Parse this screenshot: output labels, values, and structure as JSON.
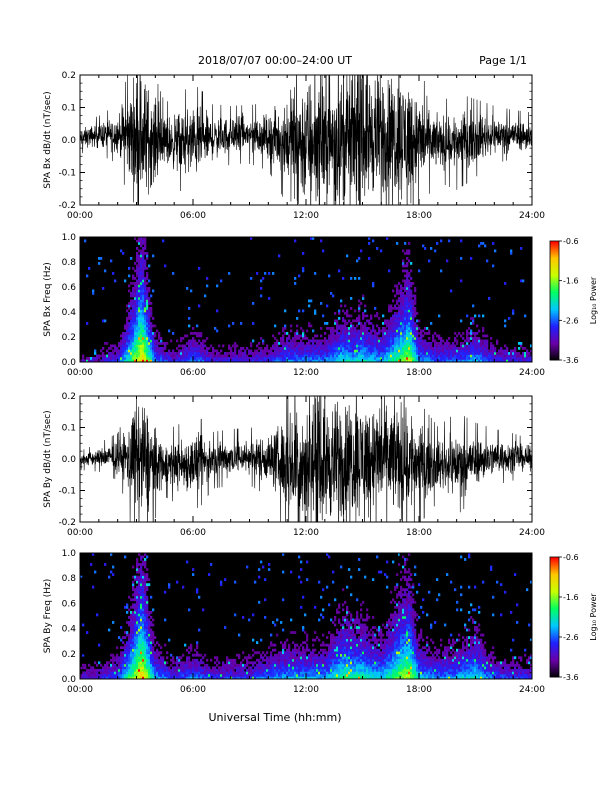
{
  "header": {
    "title": "2018/07/07  00:00–24:00 UT",
    "page": "Page 1/1"
  },
  "xaxis": {
    "ticks": [
      "00:00",
      "06:00",
      "12:00",
      "18:00",
      "24:00"
    ],
    "label": "Universal Time (hh:mm)"
  },
  "colorbar": {
    "ticks": [
      "-0.6",
      "-1.6",
      "-2.6",
      "-3.6"
    ],
    "range": [
      -3.6,
      -0.6
    ],
    "label": "Log₁₀ Power",
    "colors": [
      "#000000",
      "#6a00a8",
      "#2020ff",
      "#00c8ff",
      "#00ff60",
      "#c8ff00",
      "#ffc800",
      "#ff0000"
    ]
  },
  "chart_data": [
    {
      "type": "line",
      "ylabel": "SPA Bx dB/dt (nT/sec)",
      "ylim": [
        -0.2,
        0.2
      ],
      "yticks": [
        "0.2",
        "0.1",
        "0.0",
        "-0.1",
        "-0.2"
      ],
      "xlim": [
        0,
        24
      ],
      "envelope": {
        "hours": [
          0,
          1,
          2,
          2.5,
          3,
          3.4,
          3.8,
          4.5,
          5,
          6,
          6.5,
          7,
          8,
          9,
          10,
          10.8,
          11.5,
          12,
          13,
          14,
          15,
          16,
          17,
          17.5,
          18,
          19,
          20,
          21,
          22,
          23,
          24
        ],
        "amplitude": [
          0.03,
          0.04,
          0.06,
          0.12,
          0.21,
          0.21,
          0.15,
          0.08,
          0.09,
          0.12,
          0.1,
          0.07,
          0.06,
          0.06,
          0.07,
          0.12,
          0.21,
          0.21,
          0.21,
          0.21,
          0.21,
          0.21,
          0.21,
          0.21,
          0.14,
          0.08,
          0.1,
          0.08,
          0.06,
          0.05,
          0.05
        ]
      }
    },
    {
      "type": "heatmap",
      "ylabel": "SPA Bx Freq (Hz)",
      "ylim": [
        0.0,
        1.0
      ],
      "yticks": [
        "1.0",
        "0.8",
        "0.6",
        "0.4",
        "0.2",
        "0.0"
      ],
      "xlim": [
        0,
        24
      ],
      "activity": {
        "hours": [
          0,
          1,
          2,
          3.3,
          4,
          5,
          6,
          6.5,
          7,
          8,
          9,
          10,
          11,
          12,
          13,
          14,
          14.5,
          15,
          16,
          17,
          17.5,
          18,
          19,
          20,
          21,
          22,
          23,
          24
        ],
        "level": [
          0.2,
          0.25,
          0.35,
          1.0,
          0.45,
          0.3,
          0.45,
          0.4,
          0.3,
          0.3,
          0.3,
          0.35,
          0.45,
          0.45,
          0.45,
          0.6,
          0.55,
          0.6,
          0.5,
          0.75,
          0.85,
          0.5,
          0.4,
          0.4,
          0.5,
          0.35,
          0.3,
          0.3
        ]
      }
    },
    {
      "type": "line",
      "ylabel": "SPA By dB/dt (nT/sec)",
      "ylim": [
        -0.2,
        0.2
      ],
      "yticks": [
        "0.2",
        "0.1",
        "0.0",
        "-0.1",
        "-0.2"
      ],
      "xlim": [
        0,
        24
      ],
      "envelope": {
        "hours": [
          0,
          1,
          2,
          2.5,
          3,
          3.4,
          3.8,
          4.5,
          5,
          6,
          6.5,
          7,
          8,
          9,
          10,
          10.8,
          11.5,
          12,
          13,
          14,
          15,
          16,
          17,
          17.5,
          18,
          19,
          20,
          21,
          22,
          23,
          24
        ],
        "amplitude": [
          0.02,
          0.03,
          0.05,
          0.1,
          0.21,
          0.21,
          0.14,
          0.07,
          0.08,
          0.1,
          0.09,
          0.06,
          0.06,
          0.06,
          0.08,
          0.14,
          0.21,
          0.21,
          0.2,
          0.21,
          0.2,
          0.18,
          0.19,
          0.2,
          0.13,
          0.08,
          0.11,
          0.08,
          0.06,
          0.05,
          0.04
        ]
      }
    },
    {
      "type": "heatmap",
      "ylabel": "SPA By Freq (Hz)",
      "ylim": [
        0.0,
        1.0
      ],
      "yticks": [
        "1.0",
        "0.8",
        "0.6",
        "0.4",
        "0.2",
        "0.0"
      ],
      "xlim": [
        0,
        24
      ],
      "activity": {
        "hours": [
          0,
          1,
          2,
          3.3,
          4,
          5,
          6,
          6.5,
          7,
          8,
          9,
          10,
          11,
          12,
          13,
          14,
          14.5,
          15,
          16,
          17,
          17.5,
          18,
          19,
          20,
          21,
          22,
          23,
          24
        ],
        "level": [
          0.25,
          0.3,
          0.4,
          1.0,
          0.5,
          0.35,
          0.45,
          0.4,
          0.35,
          0.35,
          0.35,
          0.45,
          0.5,
          0.5,
          0.5,
          0.7,
          0.65,
          0.65,
          0.55,
          0.8,
          0.85,
          0.55,
          0.45,
          0.5,
          0.6,
          0.4,
          0.35,
          0.35
        ]
      }
    }
  ]
}
